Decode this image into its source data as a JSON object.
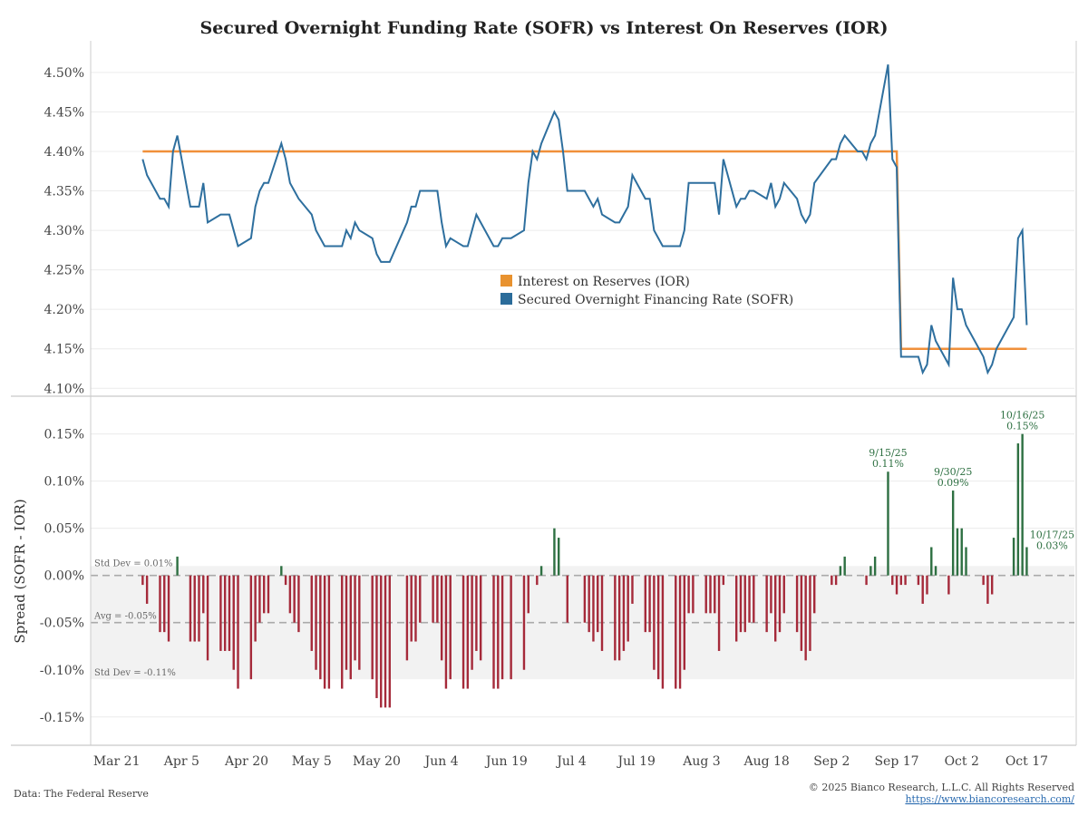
{
  "chart_data": [
    {
      "type": "line",
      "title": "Secured Overnight Funding Rate (SOFR) vs Interest On Reserves (IOR)",
      "ylim": [
        4.09,
        4.54
      ],
      "yticks": [
        "4.10%",
        "4.15%",
        "4.20%",
        "4.25%",
        "4.30%",
        "4.35%",
        "4.40%",
        "4.45%",
        "4.50%"
      ],
      "ytick_values": [
        4.1,
        4.15,
        4.2,
        4.25,
        4.3,
        4.35,
        4.4,
        4.45,
        4.5
      ],
      "grid": true,
      "legend_placement": "center",
      "legend": [
        "Interest on Reserves (IOR)",
        "Secured Overnight Financing Rate (SOFR)"
      ],
      "colors": {
        "ior": "#f0903a",
        "sofr": "#2e6f9e"
      },
      "ior_levels": [
        {
          "from": "2025-03-27",
          "to": "2025-09-17",
          "value": 4.4
        },
        {
          "from": "2025-09-18",
          "to": "2025-10-17",
          "value": 4.15
        }
      ],
      "dates": [
        "2025-03-27",
        "2025-03-28",
        "2025-03-31",
        "2025-04-01",
        "2025-04-02",
        "2025-04-03",
        "2025-04-04",
        "2025-04-07",
        "2025-04-08",
        "2025-04-09",
        "2025-04-10",
        "2025-04-11",
        "2025-04-14",
        "2025-04-15",
        "2025-04-16",
        "2025-04-17",
        "2025-04-18",
        "2025-04-21",
        "2025-04-22",
        "2025-04-23",
        "2025-04-24",
        "2025-04-25",
        "2025-04-28",
        "2025-04-29",
        "2025-04-30",
        "2025-05-01",
        "2025-05-02",
        "2025-05-05",
        "2025-05-06",
        "2025-05-07",
        "2025-05-08",
        "2025-05-09",
        "2025-05-12",
        "2025-05-13",
        "2025-05-14",
        "2025-05-15",
        "2025-05-16",
        "2025-05-19",
        "2025-05-20",
        "2025-05-21",
        "2025-05-22",
        "2025-05-23",
        "2025-05-27",
        "2025-05-28",
        "2025-05-29",
        "2025-05-30",
        "2025-06-02",
        "2025-06-03",
        "2025-06-04",
        "2025-06-05",
        "2025-06-06",
        "2025-06-09",
        "2025-06-10",
        "2025-06-11",
        "2025-06-12",
        "2025-06-13",
        "2025-06-16",
        "2025-06-17",
        "2025-06-18",
        "2025-06-20",
        "2025-06-23",
        "2025-06-24",
        "2025-06-25",
        "2025-06-26",
        "2025-06-27",
        "2025-06-30",
        "2025-07-01",
        "2025-07-02",
        "2025-07-03",
        "2025-07-07",
        "2025-07-08",
        "2025-07-09",
        "2025-07-10",
        "2025-07-11",
        "2025-07-14",
        "2025-07-15",
        "2025-07-16",
        "2025-07-17",
        "2025-07-18",
        "2025-07-21",
        "2025-07-22",
        "2025-07-23",
        "2025-07-24",
        "2025-07-25",
        "2025-07-28",
        "2025-07-29",
        "2025-07-30",
        "2025-07-31",
        "2025-08-01",
        "2025-08-04",
        "2025-08-05",
        "2025-08-06",
        "2025-08-07",
        "2025-08-08",
        "2025-08-11",
        "2025-08-12",
        "2025-08-13",
        "2025-08-14",
        "2025-08-15",
        "2025-08-18",
        "2025-08-19",
        "2025-08-20",
        "2025-08-21",
        "2025-08-22",
        "2025-08-25",
        "2025-08-26",
        "2025-08-27",
        "2025-08-28",
        "2025-08-29",
        "2025-09-02",
        "2025-09-03",
        "2025-09-04",
        "2025-09-05",
        "2025-09-08",
        "2025-09-09",
        "2025-09-10",
        "2025-09-11",
        "2025-09-12",
        "2025-09-15",
        "2025-09-16",
        "2025-09-17",
        "2025-09-18",
        "2025-09-19",
        "2025-09-22",
        "2025-09-23",
        "2025-09-24",
        "2025-09-25",
        "2025-09-26",
        "2025-09-29",
        "2025-09-30",
        "2025-10-01",
        "2025-10-02",
        "2025-10-03",
        "2025-10-06",
        "2025-10-07",
        "2025-10-08",
        "2025-10-09",
        "2025-10-10",
        "2025-10-14",
        "2025-10-15",
        "2025-10-16",
        "2025-10-17"
      ],
      "sofr": [
        4.39,
        4.37,
        4.34,
        4.34,
        4.33,
        4.4,
        4.42,
        4.33,
        4.33,
        4.33,
        4.36,
        4.31,
        4.32,
        4.32,
        4.32,
        4.3,
        4.28,
        4.29,
        4.33,
        4.35,
        4.36,
        4.36,
        4.41,
        4.39,
        4.36,
        4.35,
        4.34,
        4.32,
        4.3,
        4.29,
        4.28,
        4.28,
        4.28,
        4.3,
        4.29,
        4.31,
        4.3,
        4.29,
        4.27,
        4.26,
        4.26,
        4.26,
        4.31,
        4.33,
        4.33,
        4.35,
        4.35,
        4.35,
        4.31,
        4.28,
        4.29,
        4.28,
        4.28,
        4.3,
        4.32,
        4.31,
        4.28,
        4.28,
        4.29,
        4.29,
        4.3,
        4.36,
        4.4,
        4.39,
        4.41,
        4.45,
        4.44,
        4.4,
        4.35,
        4.35,
        4.34,
        4.33,
        4.34,
        4.32,
        4.31,
        4.31,
        4.32,
        4.33,
        4.37,
        4.34,
        4.34,
        4.3,
        4.29,
        4.28,
        4.28,
        4.28,
        4.3,
        4.36,
        4.36,
        4.36,
        4.36,
        4.36,
        4.32,
        4.39,
        4.33,
        4.34,
        4.34,
        4.35,
        4.35,
        4.34,
        4.36,
        4.33,
        4.34,
        4.36,
        4.34,
        4.32,
        4.31,
        4.32,
        4.36,
        4.39,
        4.39,
        4.41,
        4.42,
        4.4,
        4.4,
        4.39,
        4.41,
        4.42,
        4.51,
        4.39,
        4.38,
        4.14,
        4.14,
        4.14,
        4.12,
        4.13,
        4.18,
        4.16,
        4.13,
        4.24,
        4.2,
        4.2,
        4.18,
        4.15,
        4.14,
        4.12,
        4.13,
        4.15,
        4.19,
        4.29,
        4.3,
        4.18
      ],
      "xticks": [
        "Mar 21",
        "Apr 5",
        "Apr 20",
        "May 5",
        "May 20",
        "Jun 4",
        "Jun 19",
        "Jul 4",
        "Jul 19",
        "Aug 3",
        "Aug 18",
        "Sep 2",
        "Sep 17",
        "Oct 2",
        "Oct 17"
      ],
      "xtick_dates": [
        "2025-03-21",
        "2025-04-05",
        "2025-04-20",
        "2025-05-05",
        "2025-05-20",
        "2025-06-04",
        "2025-06-19",
        "2025-07-04",
        "2025-07-19",
        "2025-08-03",
        "2025-08-18",
        "2025-09-02",
        "2025-09-17",
        "2025-10-02",
        "2025-10-17"
      ],
      "xlim": [
        "2025-03-15",
        "2025-10-28"
      ]
    },
    {
      "type": "bar",
      "ylabel": "Spread (SOFR - IOR)",
      "ylim": [
        -0.18,
        0.19
      ],
      "yticks": [
        "-0.15%",
        "-0.10%",
        "-0.05%",
        "0.00%",
        "0.05%",
        "0.10%",
        "0.15%"
      ],
      "ytick_values": [
        -0.15,
        -0.1,
        -0.05,
        0.0,
        0.05,
        0.1,
        0.15
      ],
      "grid": true,
      "colors": {
        "positive": "#2e7042",
        "negative": "#a52a3a",
        "band": "#f2f2f2"
      },
      "values_rule": "SOFR minus IOR for each date",
      "stats": {
        "std_dev_upper": {
          "value": 0.01,
          "label": "Std Dev = 0.01%"
        },
        "avg": {
          "value": -0.05,
          "label": "Avg = -0.05%"
        },
        "std_dev_lower": {
          "value": -0.11,
          "label": "Std Dev = -0.11%"
        }
      },
      "annotations": [
        {
          "date": "2025-09-15",
          "value": 0.11,
          "label_date": "9/15/25",
          "label_value": "0.11%"
        },
        {
          "date": "2025-09-30",
          "value": 0.09,
          "label_date": "9/30/25",
          "label_value": "0.09%"
        },
        {
          "date": "2025-10-16",
          "value": 0.15,
          "label_date": "10/16/25",
          "label_value": "0.15%"
        },
        {
          "date": "2025-10-17",
          "value": 0.03,
          "label_date": "10/17/25",
          "label_value": "0.03%"
        }
      ]
    }
  ],
  "footer": {
    "source": "Data: The Federal Reserve",
    "copyright": "© 2025 Bianco Research, L.L.C. All Rights Reserved",
    "url": "https://www.biancoresearch.com/"
  }
}
